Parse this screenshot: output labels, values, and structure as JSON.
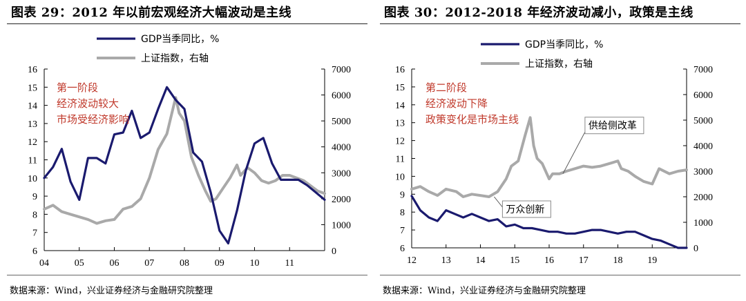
{
  "source_label": "数据来源：Wind，兴业证券经济与金融研究院整理",
  "colors": {
    "gdp": "#1a1a6e",
    "index": "#a9a9a9",
    "anno": "#c0392b"
  },
  "chart_data": [
    {
      "type": "line",
      "title": "图表 29：2012 年以前宏观经济大幅波动是主线",
      "legend_placement": "top",
      "x_tick_labels": [
        "04",
        "05",
        "06",
        "07",
        "08",
        "09",
        "10",
        "11"
      ],
      "x_ticks": [
        2004,
        2005,
        2006,
        2007,
        2008,
        2009,
        2010,
        2011
      ],
      "xlim": [
        2004,
        2012
      ],
      "ylim_left": [
        6,
        16
      ],
      "ylim_right": [
        0,
        7000
      ],
      "y_left_ticks": [
        6,
        7,
        8,
        9,
        10,
        11,
        12,
        13,
        14,
        15,
        16
      ],
      "y_right_ticks": [
        0,
        1000,
        2000,
        3000,
        4000,
        5000,
        6000,
        7000
      ],
      "annotation": [
        "第一阶段",
        "经济波动较大",
        "市场受经济影响"
      ],
      "series": [
        {
          "name": "GDP当季同比，%",
          "axis": "left",
          "x": [
            2004.0,
            2004.25,
            2004.5,
            2004.75,
            2005.0,
            2005.25,
            2005.5,
            2005.75,
            2006.0,
            2006.25,
            2006.5,
            2006.75,
            2007.0,
            2007.25,
            2007.5,
            2007.75,
            2008.0,
            2008.25,
            2008.5,
            2008.75,
            2009.0,
            2009.25,
            2009.5,
            2009.75,
            2010.0,
            2010.25,
            2010.5,
            2010.75,
            2011.0,
            2011.25,
            2011.5,
            2011.75,
            2012.0
          ],
          "values": [
            10.0,
            10.6,
            11.6,
            9.8,
            8.8,
            11.1,
            11.1,
            10.8,
            12.4,
            12.5,
            13.7,
            12.2,
            12.5,
            13.8,
            15.0,
            14.3,
            13.8,
            11.4,
            10.9,
            9.2,
            7.1,
            6.4,
            8.2,
            10.4,
            11.9,
            12.2,
            10.8,
            9.9,
            9.9,
            9.9,
            9.6,
            9.2,
            8.8
          ]
        },
        {
          "name": "上证指数，右轴",
          "axis": "right",
          "x": [
            2004.0,
            2004.25,
            2004.5,
            2004.75,
            2005.0,
            2005.25,
            2005.5,
            2005.75,
            2006.0,
            2006.25,
            2006.5,
            2006.75,
            2007.0,
            2007.25,
            2007.5,
            2007.75,
            2007.85,
            2008.0,
            2008.2,
            2008.4,
            2008.6,
            2008.75,
            2008.9,
            2009.1,
            2009.3,
            2009.5,
            2009.6,
            2009.8,
            2010.0,
            2010.2,
            2010.4,
            2010.6,
            2010.8,
            2011.0,
            2011.2,
            2011.4,
            2011.6,
            2011.8,
            2012.0
          ],
          "values": [
            1600,
            1750,
            1500,
            1400,
            1300,
            1200,
            1050,
            1150,
            1200,
            1600,
            1700,
            2000,
            2800,
            3900,
            4500,
            5900,
            5300,
            5000,
            3600,
            2900,
            2300,
            1900,
            2000,
            2400,
            2800,
            3300,
            2900,
            3200,
            3000,
            2700,
            2600,
            2700,
            2900,
            2900,
            2800,
            2700,
            2500,
            2300,
            2200
          ]
        }
      ]
    },
    {
      "type": "line",
      "title": "图表 30：2012-2018 年经济波动减小，政策是主线",
      "legend_placement": "top",
      "x_tick_labels": [
        "12",
        "13",
        "14",
        "15",
        "16",
        "17",
        "18",
        "19"
      ],
      "x_ticks": [
        2012,
        2013,
        2014,
        2015,
        2016,
        2017,
        2018,
        2019
      ],
      "xlim": [
        2012,
        2020
      ],
      "ylim_left": [
        6,
        16
      ],
      "ylim_right": [
        0,
        7000
      ],
      "y_left_ticks": [
        6,
        7,
        8,
        9,
        10,
        11,
        12,
        13,
        14,
        15,
        16
      ],
      "y_right_ticks": [
        0,
        1000,
        2000,
        3000,
        4000,
        5000,
        6000,
        7000
      ],
      "annotation": [
        "第二阶段",
        "经济波动下降",
        "政策变化是市场主线"
      ],
      "callouts": [
        {
          "text": "供给侧改革",
          "x": 2016.4,
          "y_right": 2900
        },
        {
          "text": "万众创新",
          "x": 2014.4,
          "y_right": 2000
        }
      ],
      "series": [
        {
          "name": "GDP当季同比，%",
          "axis": "left",
          "x": [
            2012.0,
            2012.25,
            2012.5,
            2012.75,
            2013.0,
            2013.25,
            2013.5,
            2013.75,
            2014.0,
            2014.25,
            2014.5,
            2014.75,
            2015.0,
            2015.25,
            2015.5,
            2015.75,
            2016.0,
            2016.25,
            2016.5,
            2016.75,
            2017.0,
            2017.25,
            2017.5,
            2017.75,
            2018.0,
            2018.25,
            2018.5,
            2018.75,
            2019.0,
            2019.25,
            2019.5,
            2019.75,
            2020.0
          ],
          "values": [
            8.9,
            8.1,
            7.7,
            7.5,
            8.1,
            7.9,
            7.7,
            7.9,
            7.7,
            7.5,
            7.6,
            7.2,
            7.3,
            7.1,
            7.1,
            7.0,
            6.9,
            6.9,
            6.8,
            6.8,
            6.9,
            7.0,
            7.0,
            6.9,
            6.8,
            6.9,
            6.9,
            6.7,
            6.5,
            6.4,
            6.2,
            6.0,
            6.0
          ]
        },
        {
          "name": "上证指数，右轴",
          "axis": "right",
          "x": [
            2012.0,
            2012.25,
            2012.5,
            2012.75,
            2013.0,
            2013.3,
            2013.5,
            2013.75,
            2014.0,
            2014.25,
            2014.5,
            2014.75,
            2014.9,
            2015.1,
            2015.3,
            2015.45,
            2015.55,
            2015.65,
            2015.8,
            2016.0,
            2016.1,
            2016.3,
            2016.5,
            2016.75,
            2017.0,
            2017.25,
            2017.5,
            2017.75,
            2018.0,
            2018.1,
            2018.3,
            2018.5,
            2018.75,
            2019.0,
            2019.2,
            2019.5,
            2019.75,
            2020.0
          ],
          "values": [
            2300,
            2400,
            2200,
            2050,
            2300,
            2200,
            2000,
            2100,
            2050,
            2000,
            2200,
            2700,
            3200,
            3400,
            4400,
            5100,
            4000,
            3500,
            3300,
            2700,
            2900,
            2900,
            3000,
            3100,
            3200,
            3150,
            3200,
            3300,
            3400,
            3100,
            3000,
            2800,
            2600,
            2500,
            3100,
            2900,
            3000,
            3050
          ]
        }
      ]
    }
  ]
}
